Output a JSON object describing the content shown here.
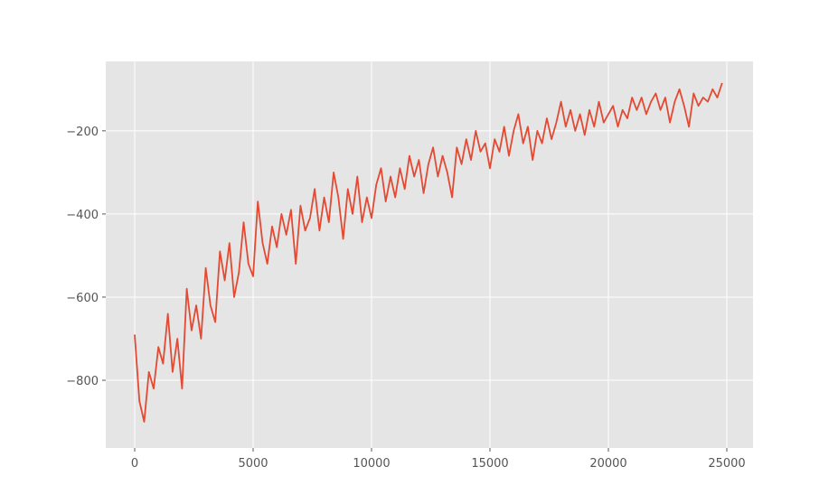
{
  "chart_data": {
    "type": "line",
    "title": "",
    "xlabel": "",
    "ylabel": "",
    "xlim": [
      -1221,
      26107
    ],
    "ylim": [
      -963,
      -33
    ],
    "grid": true,
    "style": "ggplot",
    "colors": {
      "background": "#E5E5E5",
      "grid": "#FFFFFF",
      "line": "#E24A33",
      "tick_text": "#555555"
    },
    "xticks": [
      0,
      5000,
      10000,
      15000,
      20000,
      25000
    ],
    "xtick_labels": [
      "0",
      "5000",
      "10000",
      "15000",
      "20000",
      "25000"
    ],
    "yticks": [
      -200,
      -400,
      -600,
      -800
    ],
    "ytick_labels": [
      "−200",
      "−400",
      "−600",
      "−800"
    ],
    "x_step": 200,
    "series": [
      {
        "values": [
          -690,
          -850,
          -900,
          -780,
          -820,
          -720,
          -760,
          -640,
          -780,
          -700,
          -820,
          -580,
          -680,
          -620,
          -700,
          -530,
          -620,
          -660,
          -490,
          -560,
          -470,
          -600,
          -540,
          -420,
          -520,
          -550,
          -370,
          -470,
          -520,
          -430,
          -480,
          -400,
          -450,
          -390,
          -520,
          -380,
          -440,
          -410,
          -340,
          -440,
          -360,
          -420,
          -300,
          -360,
          -460,
          -340,
          -400,
          -310,
          -420,
          -360,
          -410,
          -330,
          -290,
          -370,
          -310,
          -360,
          -290,
          -340,
          -260,
          -310,
          -270,
          -350,
          -280,
          -240,
          -310,
          -260,
          -300,
          -360,
          -240,
          -280,
          -220,
          -270,
          -200,
          -250,
          -230,
          -290,
          -220,
          -250,
          -190,
          -260,
          -200,
          -160,
          -230,
          -190,
          -270,
          -200,
          -230,
          -170,
          -220,
          -180,
          -130,
          -190,
          -150,
          -200,
          -160,
          -210,
          -150,
          -190,
          -130,
          -180,
          -160,
          -140,
          -190,
          -150,
          -170,
          -120,
          -150,
          -120,
          -160,
          -130,
          -110,
          -150,
          -120,
          -180,
          -130,
          -100,
          -140,
          -190,
          -110,
          -140,
          -120,
          -130,
          -100,
          -120,
          -85
        ]
      }
    ]
  }
}
